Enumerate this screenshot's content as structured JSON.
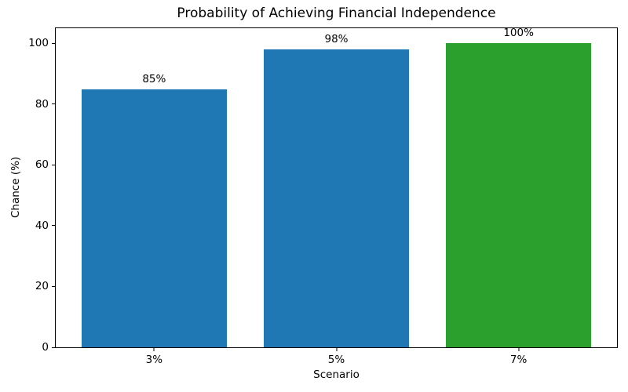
{
  "figure": {
    "background_color": "#ffffff",
    "text_color": "#000000"
  },
  "chart_data": {
    "type": "bar",
    "title": "Probability of Achieving Financial Independence",
    "xlabel": "Scenario",
    "ylabel": "Chance (%)",
    "categories": [
      "3%",
      "5%",
      "7%"
    ],
    "values": [
      85,
      98,
      100
    ],
    "bar_value_labels": [
      "85%",
      "98%",
      "100%"
    ],
    "bar_colors": [
      "#1f77b4",
      "#1f77b4",
      "#2ca02c"
    ],
    "yticks": [
      0,
      20,
      40,
      60,
      80,
      100
    ],
    "ytick_labels": [
      "0",
      "20",
      "40",
      "60",
      "80",
      "100"
    ],
    "ylim": [
      0,
      105
    ],
    "xlim": [
      -0.54,
      2.54
    ],
    "bar_width": 0.8,
    "grid": false,
    "legend": "none"
  }
}
